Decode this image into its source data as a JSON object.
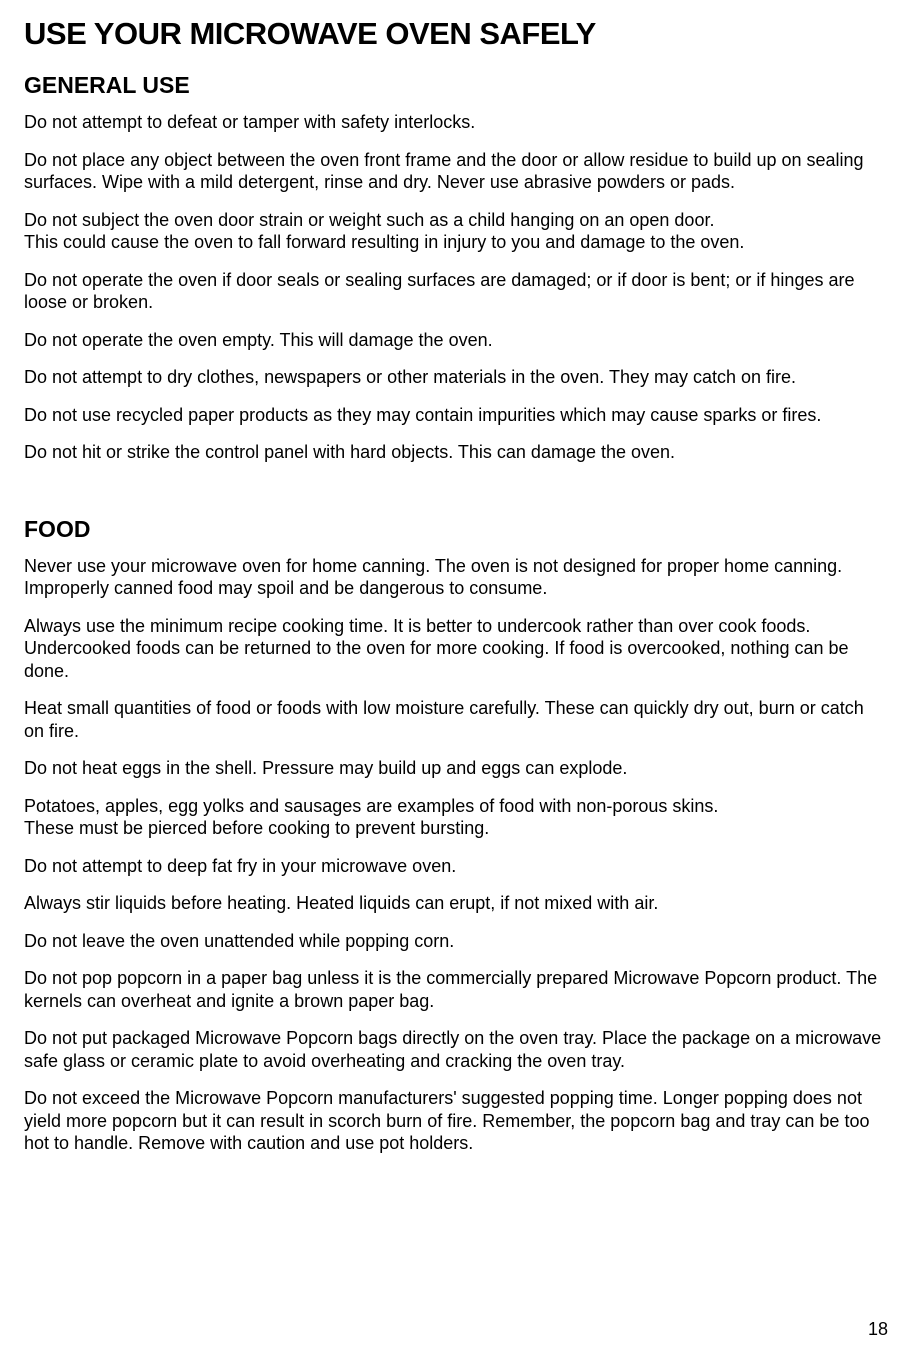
{
  "title": "USE YOUR MICROWAVE OVEN SAFELY",
  "sections": [
    {
      "heading": "GENERAL USE",
      "paragraphs": [
        "Do not attempt to defeat or tamper with safety interlocks.",
        "Do not place any object between the oven front frame and the door or allow residue to build up on sealing surfaces. Wipe with a mild detergent, rinse and dry. Never use abrasive powders or pads.",
        "Do not subject the oven door strain or weight such as a child hanging on an open door.\nThis could cause the oven to fall forward resulting in injury to you and damage to the oven.",
        "Do not operate the oven if door seals or sealing surfaces are damaged; or if door is bent; or if hinges are loose or broken.",
        "Do not operate the oven empty. This will damage the oven.",
        "Do not attempt to dry clothes, newspapers or other materials in the oven. They may catch on fire.",
        "Do not use recycled paper products as they may contain impurities which may cause sparks or fires.",
        "Do not hit or strike the control panel with hard objects. This can damage the oven."
      ]
    },
    {
      "heading": "FOOD",
      "paragraphs": [
        "Never use your microwave oven for home canning. The oven is not designed for proper home canning. Improperly canned food may spoil and be dangerous to consume.",
        "Always use the minimum recipe cooking time. It is better to undercook rather than over cook foods. Undercooked foods can be returned to the oven for more cooking. If food is overcooked, nothing can be done.",
        "Heat small quantities of food or foods with low moisture carefully. These can quickly dry out, burn or catch on fire.",
        "Do not heat eggs in the shell. Pressure may build up and eggs can explode.",
        "Potatoes, apples, egg yolks and sausages are examples of food with non-porous skins.\nThese must be pierced before cooking to prevent bursting.",
        "Do not attempt to deep fat fry in your microwave oven.",
        "Always stir liquids before heating. Heated liquids can erupt, if not mixed with air.",
        "Do not leave the oven unattended while popping corn.",
        "Do not pop popcorn in a paper bag unless it is the commercially prepared Microwave Popcorn product. The kernels can overheat and ignite a brown paper bag.",
        "Do not put packaged Microwave Popcorn bags directly on the oven tray. Place the package on a microwave safe glass or ceramic plate to avoid overheating and cracking the oven tray.",
        "Do not exceed the Microwave Popcorn manufacturers' suggested popping time. Longer popping does not yield more popcorn but it can result in scorch burn of fire. Remember, the popcorn bag and tray can be too hot to handle. Remove with caution and use pot holders."
      ]
    }
  ],
  "pageNumber": "18"
}
